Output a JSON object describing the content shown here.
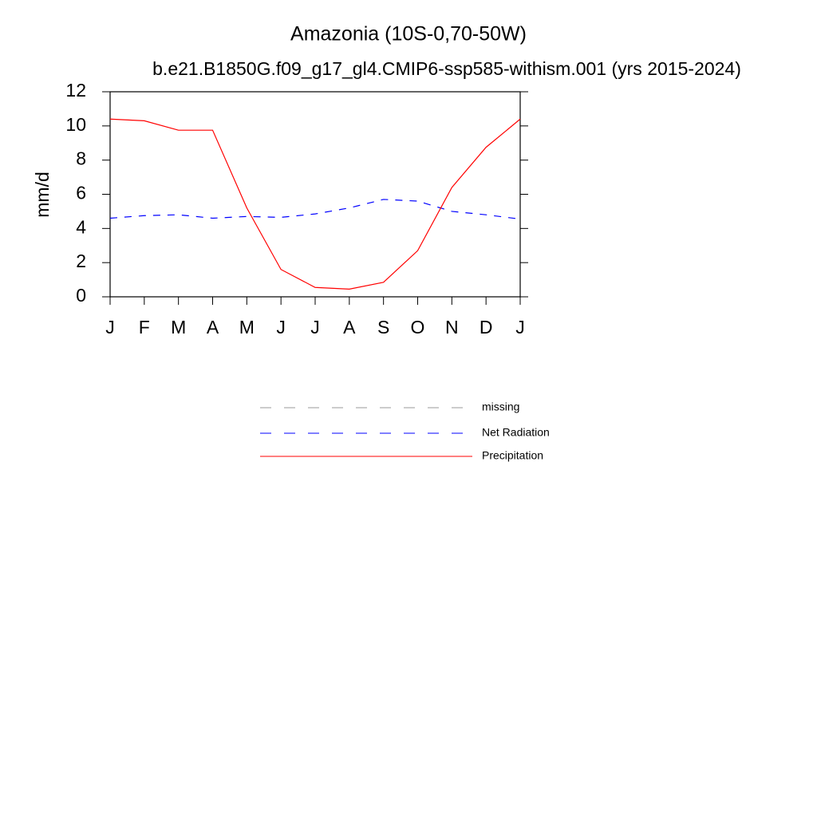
{
  "chart_data": {
    "type": "line",
    "title": "Amazonia (10S-0,70-50W)",
    "subtitle": "b.e21.B1850G.f09_g17_gl4.CMIP6-ssp585-withism.001 (yrs 2015-2024)",
    "y_label": "mm/d",
    "categories": [
      "J",
      "F",
      "M",
      "A",
      "M",
      "J",
      "J",
      "A",
      "S",
      "O",
      "N",
      "D",
      "J"
    ],
    "series": [
      {
        "name": "missing",
        "color": "#999999",
        "dash": true,
        "values": [
          null,
          null,
          null,
          null,
          null,
          null,
          null,
          null,
          null,
          null,
          null,
          null,
          null
        ]
      },
      {
        "name": "Net Radiation",
        "color": "#0000ff",
        "dash": true,
        "values": [
          4.6,
          4.75,
          4.8,
          4.6,
          4.7,
          4.65,
          4.85,
          5.2,
          5.7,
          5.6,
          5.0,
          4.8,
          4.55
        ]
      },
      {
        "name": "Precipitation",
        "color": "#ff0000",
        "dash": false,
        "values": [
          10.4,
          10.3,
          9.75,
          9.75,
          5.2,
          1.6,
          0.55,
          0.45,
          0.85,
          2.7,
          6.4,
          8.75,
          10.4
        ]
      }
    ],
    "ylim": [
      0,
      12
    ],
    "yticks": [
      0,
      2,
      4,
      6,
      8,
      10,
      12
    ],
    "grid": false
  }
}
